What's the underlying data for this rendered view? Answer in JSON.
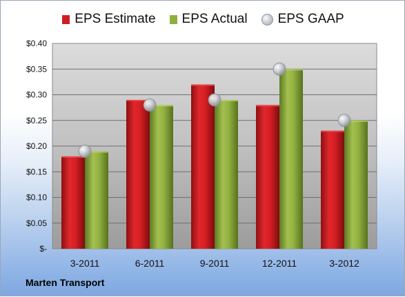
{
  "chart_data": {
    "type": "bar",
    "categories": [
      "3-2011",
      "6-2011",
      "9-2011",
      "12-2011",
      "3-2012"
    ],
    "series": [
      {
        "name": "EPS Estimate",
        "values": [
          0.18,
          0.29,
          0.32,
          0.28,
          0.23
        ],
        "color": "#cc1f23",
        "kind": "bar"
      },
      {
        "name": "EPS Actual",
        "values": [
          0.19,
          0.28,
          0.29,
          0.35,
          0.25
        ],
        "color": "#8fb03e",
        "kind": "bar"
      },
      {
        "name": "EPS GAAP",
        "values": [
          0.19,
          0.28,
          0.29,
          0.35,
          0.25
        ],
        "color": "#c0c4c9",
        "kind": "marker"
      }
    ],
    "yticks": [
      "$-",
      "$0.05",
      "$0.10",
      "$0.15",
      "$0.20",
      "$0.25",
      "$0.30",
      "$0.35",
      "$0.40"
    ],
    "ylim": [
      0,
      0.4
    ],
    "grid": true,
    "legend_position": "top",
    "footer": "Marten Transport"
  }
}
